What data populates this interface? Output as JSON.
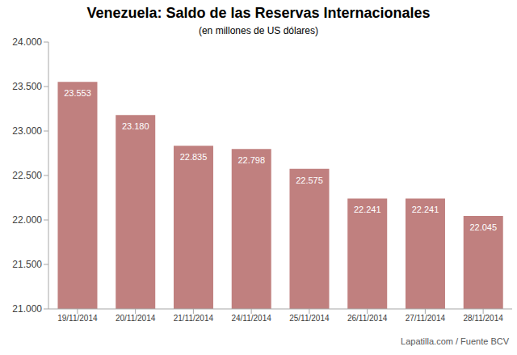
{
  "chart_data": {
    "type": "bar",
    "title": "Venezuela: Saldo de las Reservas Internacionales",
    "subtitle": "(en millones de US dólares)",
    "source": "Lapatilla.com / Fuente BCV",
    "categories": [
      "19/11/2014",
      "20/11/2014",
      "21/11/2014",
      "24/11/2014",
      "25/11/2014",
      "26/11/2014",
      "27/11/2014",
      "28/11/2014"
    ],
    "values": [
      23553,
      23180,
      22835,
      22798,
      22575,
      22241,
      22241,
      22045
    ],
    "value_labels": [
      "23.553",
      "23.180",
      "22.835",
      "22.798",
      "22.575",
      "22.241",
      "22.241",
      "22.045"
    ],
    "data_labels": true,
    "color": "#c0807f",
    "ylim": [
      21000,
      24000
    ],
    "yticks": [
      {
        "value": 21000,
        "label": "21.000"
      },
      {
        "value": 21500,
        "label": "21.500"
      },
      {
        "value": 22000,
        "label": "22.000"
      },
      {
        "value": 22500,
        "label": "22.500"
      },
      {
        "value": 23000,
        "label": "23.000"
      },
      {
        "value": 23500,
        "label": "23.500"
      },
      {
        "value": 24000,
        "label": "24.000"
      }
    ],
    "grid": false
  }
}
